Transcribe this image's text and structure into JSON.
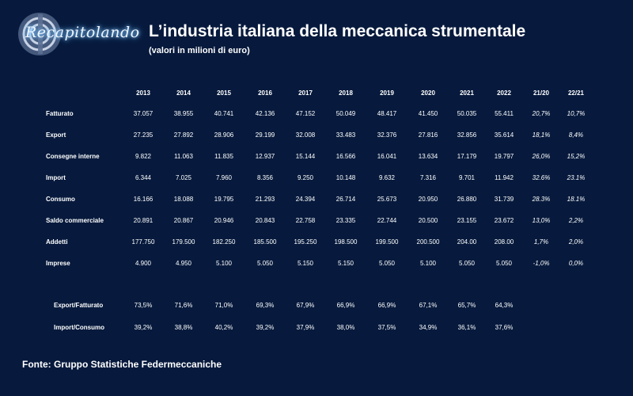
{
  "header": {
    "brand": "Recapitolando",
    "title": "L’industria italiana della meccanica strumentale",
    "subtitle": "(valori in milioni di euro)"
  },
  "table": {
    "columns": [
      "2013",
      "2014",
      "2015",
      "2016",
      "2017",
      "2018",
      "2019",
      "2020",
      "2021",
      "2022",
      "21/20",
      "22/21"
    ],
    "rows": [
      {
        "label": "Fatturato",
        "values": [
          "37.057",
          "38.955",
          "40.741",
          "42.136",
          "47.152",
          "50.049",
          "48.417",
          "41.450",
          "50.035",
          "55.411"
        ],
        "changes": [
          "20,7%",
          "10,7%"
        ]
      },
      {
        "label": "Export",
        "values": [
          "27.235",
          "27.892",
          "28.906",
          "29.199",
          "32.008",
          "33.483",
          "32.376",
          "27.816",
          "32.856",
          "35.614"
        ],
        "changes": [
          "18,1%",
          "8,4%"
        ]
      },
      {
        "label": "Consegne interne",
        "values": [
          "9.822",
          "11.063",
          "11.835",
          "12.937",
          "15.144",
          "16.566",
          "16.041",
          "13.634",
          "17.179",
          "19.797"
        ],
        "changes": [
          "26,0%",
          "15,2%"
        ]
      },
      {
        "label": "Import",
        "values": [
          "6.344",
          "7.025",
          "7.960",
          "8.356",
          "9.250",
          "10.148",
          "9.632",
          "7.316",
          "9.701",
          "11.942"
        ],
        "changes": [
          "32.6%",
          "23.1%"
        ]
      },
      {
        "label": "Consumo",
        "values": [
          "16.166",
          "18.088",
          "19.795",
          "21.293",
          "24.394",
          "26.714",
          "25.673",
          "20.950",
          "26.880",
          "31.739"
        ],
        "changes": [
          "28.3%",
          "18.1%"
        ]
      },
      {
        "label": "Saldo commerciale",
        "values": [
          "20.891",
          "20.867",
          "20.946",
          "20.843",
          "22.758",
          "23.335",
          "22.744",
          "20.500",
          "23.155",
          "23.672"
        ],
        "changes": [
          "13,0%",
          "2,2%"
        ]
      },
      {
        "label": "Addetti",
        "values": [
          "177.750",
          "179.500",
          "182.250",
          "185.500",
          "195.250",
          "198.500",
          "199.500",
          "200.500",
          "204.00",
          "208.00"
        ],
        "changes": [
          "1,7%",
          "2,0%"
        ]
      },
      {
        "label": "Imprese",
        "values": [
          "4.900",
          "4.950",
          "5.100",
          "5.050",
          "5.150",
          "5.150",
          "5.050",
          "5.100",
          "5.050",
          "5.050"
        ],
        "changes": [
          "-1,0%",
          "0,0%"
        ]
      }
    ],
    "ratios": [
      {
        "label": "Export/Fatturato",
        "values": [
          "73,5%",
          "71,6%",
          "71,0%",
          "69,3%",
          "67,9%",
          "66,9%",
          "66,9%",
          "67,1%",
          "65,7%",
          "64,3%"
        ]
      },
      {
        "label": "Import/Consumo",
        "values": [
          "39,2%",
          "38,8%",
          "40,2%",
          "39,2%",
          "37,9%",
          "38,0%",
          "37,5%",
          "34,9%",
          "36,1%",
          "37,6%"
        ]
      }
    ]
  },
  "footer": {
    "source": "Fonte: Gruppo Statistiche Federmeccaniche"
  }
}
